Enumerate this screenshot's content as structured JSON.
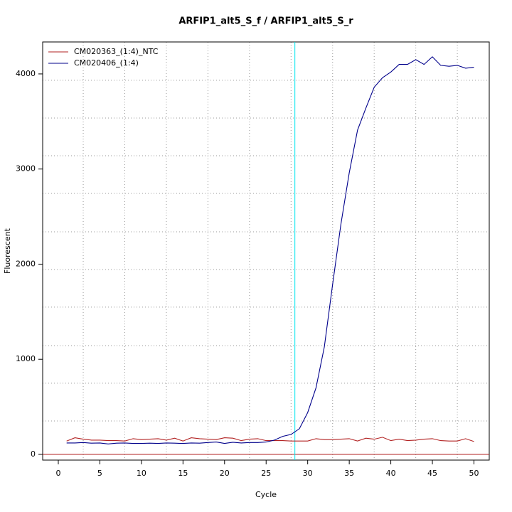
{
  "chart_data": {
    "type": "line",
    "title": "ARFIP1_alt5_S_f / ARFIP1_alt5_S_r",
    "x_label": "Cycle",
    "y_label": "Fluorescent",
    "x": [
      1,
      2,
      3,
      4,
      5,
      6,
      7,
      8,
      9,
      10,
      11,
      12,
      13,
      14,
      15,
      16,
      17,
      18,
      19,
      20,
      21,
      22,
      23,
      24,
      25,
      26,
      27,
      28,
      29,
      30,
      31,
      32,
      33,
      34,
      35,
      36,
      37,
      38,
      39,
      40,
      41,
      42,
      43,
      44,
      45,
      46,
      47,
      48,
      49,
      50
    ],
    "series": [
      {
        "name": "CM020363_(1:4)_NTC",
        "color": "#b22222",
        "values": [
          140,
          175,
          160,
          150,
          150,
          145,
          145,
          140,
          165,
          155,
          160,
          165,
          150,
          170,
          140,
          175,
          165,
          160,
          155,
          175,
          170,
          145,
          160,
          165,
          145,
          145,
          145,
          140,
          140,
          140,
          165,
          155,
          155,
          160,
          165,
          140,
          170,
          160,
          180,
          145,
          160,
          145,
          150,
          160,
          165,
          145,
          140,
          140,
          165,
          135
        ]
      },
      {
        "name": "CM020406_(1:4)",
        "color": "#00008b",
        "values": [
          120,
          120,
          125,
          118,
          120,
          110,
          118,
          120,
          115,
          115,
          118,
          115,
          120,
          118,
          115,
          120,
          118,
          125,
          130,
          115,
          128,
          120,
          125,
          125,
          130,
          150,
          190,
          210,
          270,
          440,
          700,
          1130,
          1790,
          2420,
          2960,
          3410,
          3640,
          3860,
          3960,
          4020,
          4100,
          4100,
          4150,
          4100,
          4180,
          4090,
          4080,
          4090,
          4060,
          4070
        ]
      }
    ],
    "xlim": [
      -1.88,
      51.84
    ],
    "ylim": [
      -60,
      4336
    ],
    "xticks": [
      0,
      5,
      10,
      15,
      20,
      25,
      30,
      35,
      40,
      45,
      50
    ],
    "yticks": [
      0,
      1000,
      2000,
      3000,
      4000
    ],
    "xgrid": [
      3,
      8,
      13,
      18,
      23,
      28,
      33,
      38,
      43,
      48
    ],
    "ygrid": [
      351,
      748,
      1144,
      1548,
      1944,
      2340,
      2744,
      3140,
      3536,
      3933
    ],
    "threshold": 0,
    "threshold_color": "#b22222",
    "cycle_line": 28.46,
    "cycle_line_color": "#00e5ee",
    "legend": "top-left"
  }
}
